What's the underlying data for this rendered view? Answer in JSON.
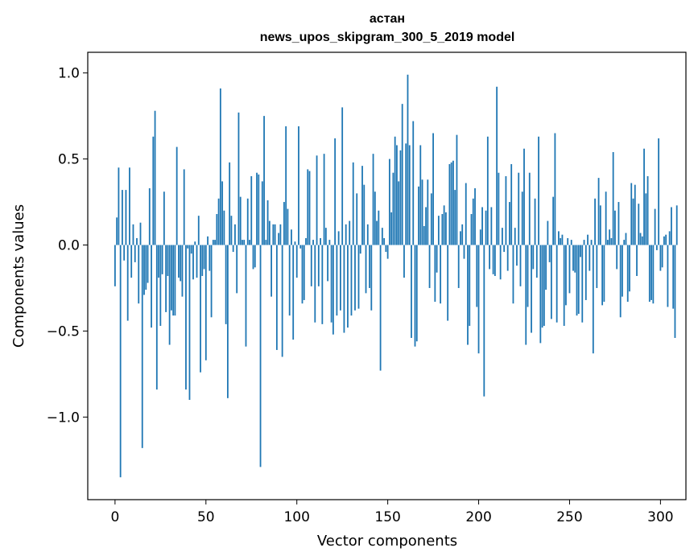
{
  "chart_data": {
    "type": "bar",
    "title_line1": "астан",
    "title_line2": "news_upos_skipgram_300_5_2019 model",
    "xlabel": "Vector components",
    "ylabel": "Components values",
    "xlim": [
      -15,
      314
    ],
    "ylim": [
      -1.48,
      1.12
    ],
    "xticks": [
      0,
      50,
      100,
      150,
      200,
      250,
      300
    ],
    "yticks": [
      1.0,
      0.5,
      0.0,
      -0.5,
      -1.0
    ],
    "ytick_labels": [
      "1.0",
      "0.5",
      "0.0",
      "−0.5",
      "−1.0"
    ],
    "bar_color": "#1f77b4",
    "bar_width": 0.8,
    "values": [
      -0.24,
      0.16,
      0.45,
      -1.35,
      0.32,
      -0.09,
      0.32,
      -0.44,
      0.45,
      -0.19,
      0.12,
      -0.1,
      0.04,
      -0.34,
      0.13,
      -1.18,
      -0.29,
      -0.26,
      -0.22,
      0.33,
      -0.48,
      0.63,
      0.78,
      -0.84,
      -0.19,
      -0.47,
      -0.17,
      0.31,
      -0.39,
      -0.18,
      -0.58,
      -0.38,
      -0.41,
      -0.41,
      0.57,
      -0.19,
      -0.21,
      -0.3,
      0.44,
      -0.84,
      -0.02,
      -0.9,
      -0.05,
      -0.2,
      0.02,
      -0.19,
      0.17,
      -0.74,
      -0.18,
      -0.14,
      -0.67,
      0.05,
      -0.15,
      -0.42,
      0.03,
      0.03,
      0.18,
      0.27,
      0.91,
      0.37,
      0.2,
      -0.46,
      -0.89,
      0.48,
      0.17,
      -0.04,
      0.12,
      -0.28,
      0.77,
      0.28,
      0.03,
      0.03,
      -0.59,
      0.27,
      0.03,
      0.4,
      -0.14,
      -0.13,
      0.42,
      0.41,
      -1.29,
      0.37,
      0.75,
      0.03,
      0.26,
      0.14,
      -0.3,
      0.12,
      0.12,
      -0.61,
      0.07,
      0.12,
      -0.65,
      0.25,
      0.69,
      0.21,
      -0.41,
      0.09,
      -0.55,
      0.02,
      -0.19,
      0.69,
      -0.02,
      -0.34,
      -0.32,
      0.04,
      0.44,
      0.43,
      -0.24,
      0.03,
      -0.45,
      0.52,
      -0.24,
      0.04,
      -0.46,
      0.53,
      0.1,
      -0.21,
      0.03,
      -0.45,
      -0.52,
      0.62,
      -0.41,
      0.08,
      -0.38,
      0.8,
      -0.51,
      0.12,
      -0.48,
      0.14,
      -0.41,
      0.48,
      -0.38,
      0.3,
      -0.37,
      -0.05,
      0.46,
      0.35,
      -0.28,
      0.12,
      -0.25,
      -0.38,
      0.53,
      0.31,
      0.14,
      0.2,
      -0.73,
      0.1,
      0.04,
      -0.04,
      -0.08,
      0.5,
      0.19,
      0.42,
      0.63,
      0.58,
      0.37,
      0.55,
      0.82,
      -0.19,
      0.59,
      0.99,
      0.58,
      -0.54,
      0.72,
      -0.59,
      -0.56,
      0.34,
      0.58,
      0.38,
      0.11,
      0.22,
      0.38,
      -0.25,
      0.3,
      0.65,
      -0.33,
      -0.16,
      0.17,
      -0.34,
      0.18,
      0.23,
      0.19,
      -0.44,
      0.47,
      0.48,
      0.49,
      0.32,
      0.64,
      -0.25,
      0.08,
      0.12,
      -0.08,
      0.36,
      -0.58,
      -0.47,
      0.18,
      0.27,
      0.33,
      -0.36,
      -0.63,
      0.09,
      0.22,
      -0.88,
      0.2,
      0.63,
      -0.14,
      0.22,
      -0.17,
      -0.18,
      0.92,
      0.42,
      -0.2,
      0.1,
      -0.04,
      0.4,
      -0.15,
      0.25,
      0.47,
      -0.34,
      0.1,
      -0.12,
      0.42,
      -0.24,
      0.31,
      0.56,
      -0.58,
      -0.36,
      0.42,
      -0.51,
      -0.14,
      0.27,
      -0.19,
      0.63,
      -0.57,
      -0.48,
      -0.47,
      -0.26,
      0.14,
      -0.1,
      -0.43,
      0.28,
      0.65,
      -0.45,
      0.08,
      0.04,
      0.06,
      -0.47,
      -0.35,
      0.04,
      -0.28,
      0.03,
      -0.15,
      -0.16,
      -0.41,
      -0.4,
      -0.07,
      -0.45,
      0.03,
      -0.32,
      0.06,
      -0.15,
      0.03,
      -0.63,
      0.27,
      -0.25,
      0.39,
      0.23,
      -0.35,
      -0.33,
      0.31,
      0.03,
      0.09,
      0.04,
      0.54,
      0.2,
      -0.14,
      0.25,
      -0.42,
      -0.3,
      0.03,
      0.07,
      -0.33,
      -0.27,
      0.36,
      0.27,
      0.35,
      -0.18,
      0.24,
      0.07,
      0.05,
      0.56,
      0.3,
      0.4,
      -0.33,
      -0.32,
      -0.34,
      0.21,
      -0.03,
      0.62,
      -0.15,
      -0.13,
      0.05,
      0.06,
      -0.36,
      0.08,
      0.22,
      -0.37,
      -0.54,
      0.23
    ]
  }
}
